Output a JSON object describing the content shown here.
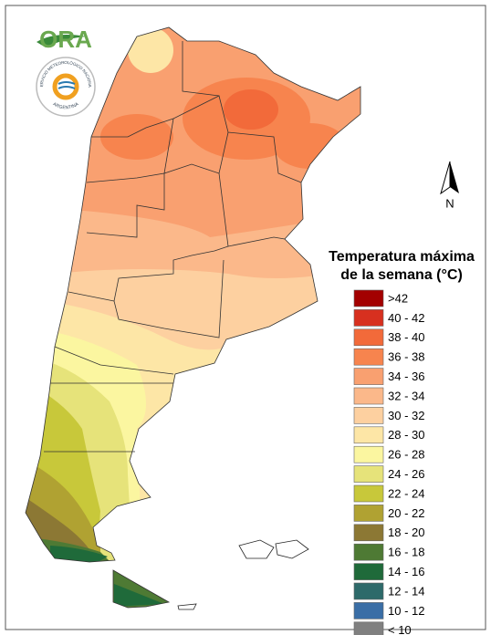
{
  "logo": {
    "name": "ORA",
    "badge_top": "SERVICIO METEOROLÓGICO NACIONAL",
    "badge_bottom": "ARGENTINA"
  },
  "north": "N",
  "legend": {
    "title": [
      "Temperatura máxima",
      "de la semana (°C)"
    ],
    "items": [
      {
        "label": ">42",
        "color": "#a30000"
      },
      {
        "label": "40 - 42",
        "color": "#d7301f"
      },
      {
        "label": "38 - 40",
        "color": "#f26a3a"
      },
      {
        "label": "36 - 38",
        "color": "#f7844e"
      },
      {
        "label": "34 - 36",
        "color": "#f9a070"
      },
      {
        "label": "32 - 34",
        "color": "#fbb88a"
      },
      {
        "label": "30 - 32",
        "color": "#fdd0a0"
      },
      {
        "label": "28 - 30",
        "color": "#fde6a6"
      },
      {
        "label": "26 - 28",
        "color": "#fbf6a0"
      },
      {
        "label": "24 - 26",
        "color": "#e6e37a"
      },
      {
        "label": "22 - 24",
        "color": "#c8c83a"
      },
      {
        "label": "20 - 22",
        "color": "#b0a232"
      },
      {
        "label": "18 - 20",
        "color": "#8c7834"
      },
      {
        "label": "16 - 18",
        "color": "#4e7a34"
      },
      {
        "label": "14 - 16",
        "color": "#1f6a3a"
      },
      {
        "label": "12 - 14",
        "color": "#2d6a6a"
      },
      {
        "label": "10 - 12",
        "color": "#3a6ea6"
      },
      {
        "label": "< 10",
        "color": "#808080"
      }
    ]
  }
}
